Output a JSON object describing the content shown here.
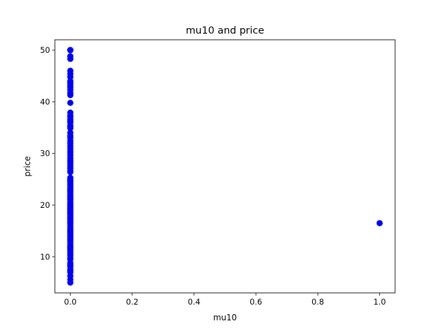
{
  "chart_data": {
    "type": "scatter",
    "title": "mu10 and price",
    "xlabel": "mu10",
    "ylabel": "price",
    "xlim": [
      -0.05,
      1.05
    ],
    "ylim": [
      3.0,
      52.0
    ],
    "xticks": [
      0.0,
      0.2,
      0.4,
      0.6,
      0.8,
      1.0
    ],
    "xtick_labels": [
      "0.0",
      "0.2",
      "0.4",
      "0.6",
      "0.8",
      "1.0"
    ],
    "yticks": [
      10,
      20,
      30,
      40,
      50
    ],
    "ytick_labels": [
      "10",
      "20",
      "30",
      "40",
      "50"
    ],
    "grid": false,
    "legend": "none",
    "marker_color": "#0000ff",
    "series": [
      {
        "x": [
          0,
          0,
          0,
          0,
          0,
          0,
          0,
          0,
          0,
          0,
          0,
          0,
          0,
          0,
          0,
          0,
          0,
          0,
          0,
          0,
          0,
          0,
          0,
          0,
          0,
          0,
          0,
          0,
          0,
          0,
          0,
          0,
          0,
          0,
          0,
          0,
          0,
          0,
          0,
          0,
          0,
          0,
          0,
          0,
          0,
          0,
          0,
          0,
          0,
          0,
          0,
          0,
          0,
          0,
          0,
          0,
          0,
          0,
          0,
          0,
          0,
          0,
          0,
          0,
          0,
          0,
          0,
          0,
          0,
          0,
          0,
          0,
          0,
          0,
          0,
          0,
          0,
          0,
          0,
          0,
          0,
          0,
          0,
          0,
          0,
          0,
          0,
          0,
          0,
          0,
          0,
          0,
          0,
          0,
          0,
          0,
          0,
          0,
          0,
          0,
          0,
          0,
          0,
          0,
          0,
          0,
          0,
          0,
          0,
          0,
          0,
          0,
          0,
          0,
          0,
          0,
          0,
          0,
          1
        ],
        "y": [
          5.0,
          5.6,
          6.3,
          7.0,
          7.2,
          7.5,
          8.1,
          8.4,
          8.8,
          9.5,
          10.2,
          10.5,
          10.9,
          11.3,
          11.7,
          11.9,
          12.3,
          12.7,
          13.1,
          13.4,
          13.8,
          14.1,
          14.4,
          14.9,
          15.2,
          15.6,
          16.1,
          16.5,
          16.8,
          17.2,
          17.5,
          17.8,
          18.2,
          18.5,
          18.9,
          19.3,
          19.6,
          19.9,
          20.3,
          20.6,
          21.0,
          21.4,
          21.7,
          22.0,
          22.4,
          22.8,
          23.1,
          23.5,
          23.9,
          24.2,
          24.5,
          24.8,
          25.0,
          25.3,
          26.4,
          26.6,
          27.1,
          27.5,
          28.0,
          28.4,
          28.7,
          29.1,
          29.6,
          30.1,
          30.5,
          31.0,
          31.5,
          32.0,
          32.5,
          33.1,
          33.4,
          34.0,
          34.9,
          35.2,
          35.4,
          36.0,
          36.2,
          36.5,
          37.0,
          37.3,
          37.9,
          39.8,
          41.3,
          41.7,
          42.3,
          42.8,
          43.1,
          43.5,
          43.8,
          44.0,
          44.8,
          45.4,
          46.0,
          48.3,
          48.8,
          50.0,
          50.0,
          50.0,
          50.0,
          50.0,
          23.0,
          21.2,
          19.4,
          18.7,
          17.4,
          16.6,
          15.0,
          14.6,
          13.3,
          12.0,
          11.5,
          9.7,
          8.3,
          22.6,
          24.7,
          20.1,
          19.1,
          18.3,
          16.5
        ]
      }
    ]
  }
}
